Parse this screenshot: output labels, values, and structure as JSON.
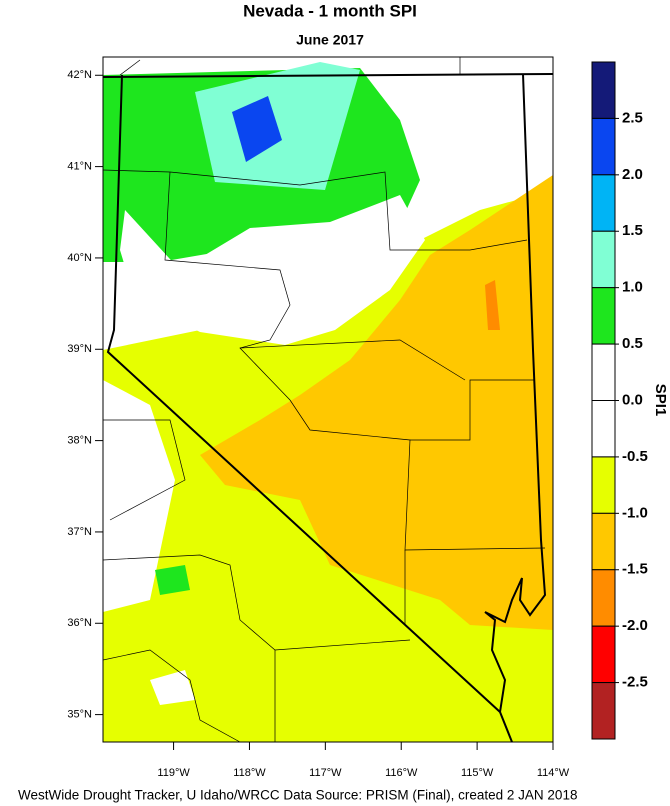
{
  "chart_data": {
    "type": "map",
    "title": "Nevada - 1 month SPI",
    "subtitle": "June 2017",
    "footer": "WestWide Drought Tracker, U Idaho/WRCC Data Source: PRISM (Final), created  2 JAN 2018",
    "xlim": [
      -119.93,
      -114
    ],
    "ylim": [
      34.7,
      42.2
    ],
    "xticks": [
      {
        "value": -119,
        "label": "119°W"
      },
      {
        "value": -118,
        "label": "118°W"
      },
      {
        "value": -117,
        "label": "117°W"
      },
      {
        "value": -116,
        "label": "116°W"
      },
      {
        "value": -115,
        "label": "115°W"
      },
      {
        "value": -114,
        "label": "114°W"
      }
    ],
    "yticks": [
      {
        "value": 42,
        "label": "42°N"
      },
      {
        "value": 41,
        "label": "41°N"
      },
      {
        "value": 40,
        "label": "40°N"
      },
      {
        "value": 39,
        "label": "39°N"
      },
      {
        "value": 38,
        "label": "38°N"
      },
      {
        "value": 37,
        "label": "37°N"
      },
      {
        "value": 36,
        "label": "36°N"
      },
      {
        "value": 35,
        "label": "35°N"
      }
    ],
    "colorbar": {
      "label": "SPI1",
      "lim": [
        -3,
        3
      ],
      "ticks": [
        2.5,
        {
          "value": 2,
          "label": "2.0"
        },
        1.5,
        {
          "value": 1,
          "label": "1.0"
        },
        0.5,
        {
          "value": 0,
          "label": "0.0"
        },
        -0.5,
        {
          "value": -1,
          "label": "-1.0"
        },
        -1.5,
        {
          "value": -2,
          "label": "-2.0"
        },
        -2.5
      ],
      "colors": [
        "#141a78",
        "#0a46f0",
        "#00b4f5",
        "#80ffd4",
        "#1ee61e",
        "#ffffff",
        "#ffffff",
        "#e6ff00",
        "#ffc800",
        "#ff8c00",
        "#ff0000",
        "#b22222"
      ]
    }
  }
}
